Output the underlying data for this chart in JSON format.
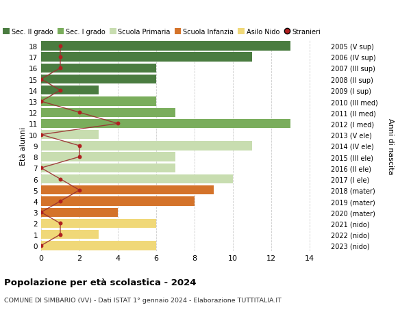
{
  "ages": [
    18,
    17,
    16,
    15,
    14,
    13,
    12,
    11,
    10,
    9,
    8,
    7,
    6,
    5,
    4,
    3,
    2,
    1,
    0
  ],
  "years": [
    "2005 (V sup)",
    "2006 (IV sup)",
    "2007 (III sup)",
    "2008 (II sup)",
    "2009 (I sup)",
    "2010 (III med)",
    "2011 (II med)",
    "2012 (I med)",
    "2013 (V ele)",
    "2014 (IV ele)",
    "2015 (III ele)",
    "2016 (II ele)",
    "2017 (I ele)",
    "2018 (mater)",
    "2019 (mater)",
    "2020 (mater)",
    "2021 (nido)",
    "2022 (nido)",
    "2023 (nido)"
  ],
  "bar_values": [
    13,
    11,
    6,
    6,
    3,
    6,
    7,
    13,
    3,
    11,
    7,
    7,
    10,
    9,
    8,
    4,
    6,
    3,
    6
  ],
  "stranieri_values": [
    1,
    1,
    1,
    0,
    1,
    0,
    2,
    4,
    0,
    2,
    2,
    0,
    1,
    2,
    1,
    0,
    1,
    1,
    0
  ],
  "bar_colors": [
    "#4a7c40",
    "#4a7c40",
    "#4a7c40",
    "#4a7c40",
    "#4a7c40",
    "#7aad5c",
    "#7aad5c",
    "#7aad5c",
    "#c8ddb0",
    "#c8ddb0",
    "#c8ddb0",
    "#c8ddb0",
    "#c8ddb0",
    "#d4732a",
    "#d4732a",
    "#d4732a",
    "#f0d878",
    "#f0d878",
    "#f0d878"
  ],
  "legend_labels": [
    "Sec. II grado",
    "Sec. I grado",
    "Scuola Primaria",
    "Scuola Infanzia",
    "Asilo Nido",
    "Stranieri"
  ],
  "legend_colors": [
    "#4a7c40",
    "#7aad5c",
    "#c8ddb0",
    "#d4732a",
    "#f0d878",
    "#b02020"
  ],
  "title": "Popolazione per età scolastica - 2024",
  "subtitle": "COMUNE DI SIMBARIO (VV) - Dati ISTAT 1° gennaio 2024 - Elaborazione TUTTITALIA.IT",
  "ylabel_left": "Età alunni",
  "ylabel_right": "Anni di nascita",
  "xlim": [
    0,
    15
  ],
  "background_color": "#ffffff",
  "grid_color": "#cccccc",
  "stranieri_color": "#b02020",
  "stranieri_line_color": "#9a3030"
}
